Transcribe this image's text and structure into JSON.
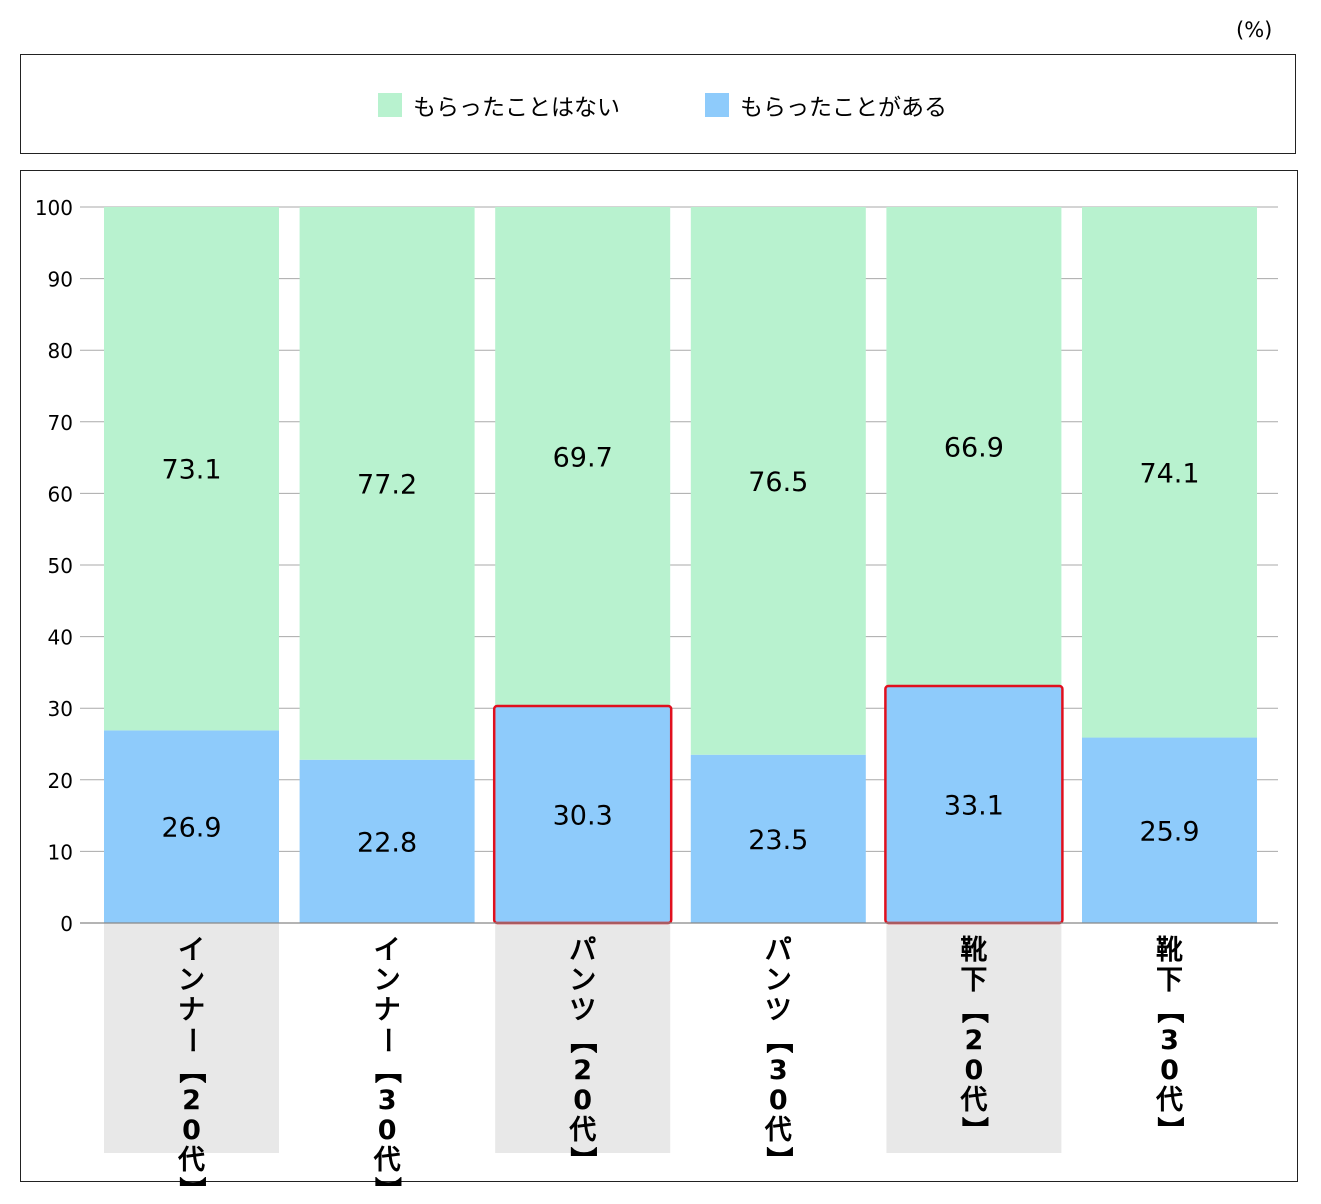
{
  "unit_label": "(%)",
  "colors": {
    "not_received": "#b8f2cf",
    "received": "#8ecbfb",
    "highlight": "#e0101e",
    "category_bg": "#e8e8e8",
    "grid": "#aaaaaa"
  },
  "legend": [
    {
      "label": "もらったことはない",
      "color": "#b8f2cf"
    },
    {
      "label": "もらったことがある",
      "color": "#8ecbfb"
    }
  ],
  "chart_data": {
    "type": "bar",
    "stacked": true,
    "categories": [
      "インナー【20代】",
      "インナー【30代】",
      "パンツ【20代】",
      "パンツ【30代】",
      "靴下【20代】",
      "靴下【30代】"
    ],
    "series": [
      {
        "name": "もらったことがある",
        "values": [
          26.9,
          22.8,
          30.3,
          23.5,
          33.1,
          25.9
        ]
      },
      {
        "name": "もらったことはない",
        "values": [
          73.1,
          77.2,
          69.7,
          76.5,
          66.9,
          74.1
        ]
      }
    ],
    "highlighted_categories": [
      "パンツ【20代】",
      "靴下【20代】"
    ],
    "shaded_categories": [
      "インナー【20代】",
      "パンツ【20代】",
      "靴下【20代】"
    ],
    "ylim": [
      0,
      100
    ],
    "yticks": [
      0,
      10,
      20,
      30,
      40,
      50,
      60,
      70,
      80,
      90,
      100
    ],
    "grid": true,
    "legend_position": "top"
  }
}
